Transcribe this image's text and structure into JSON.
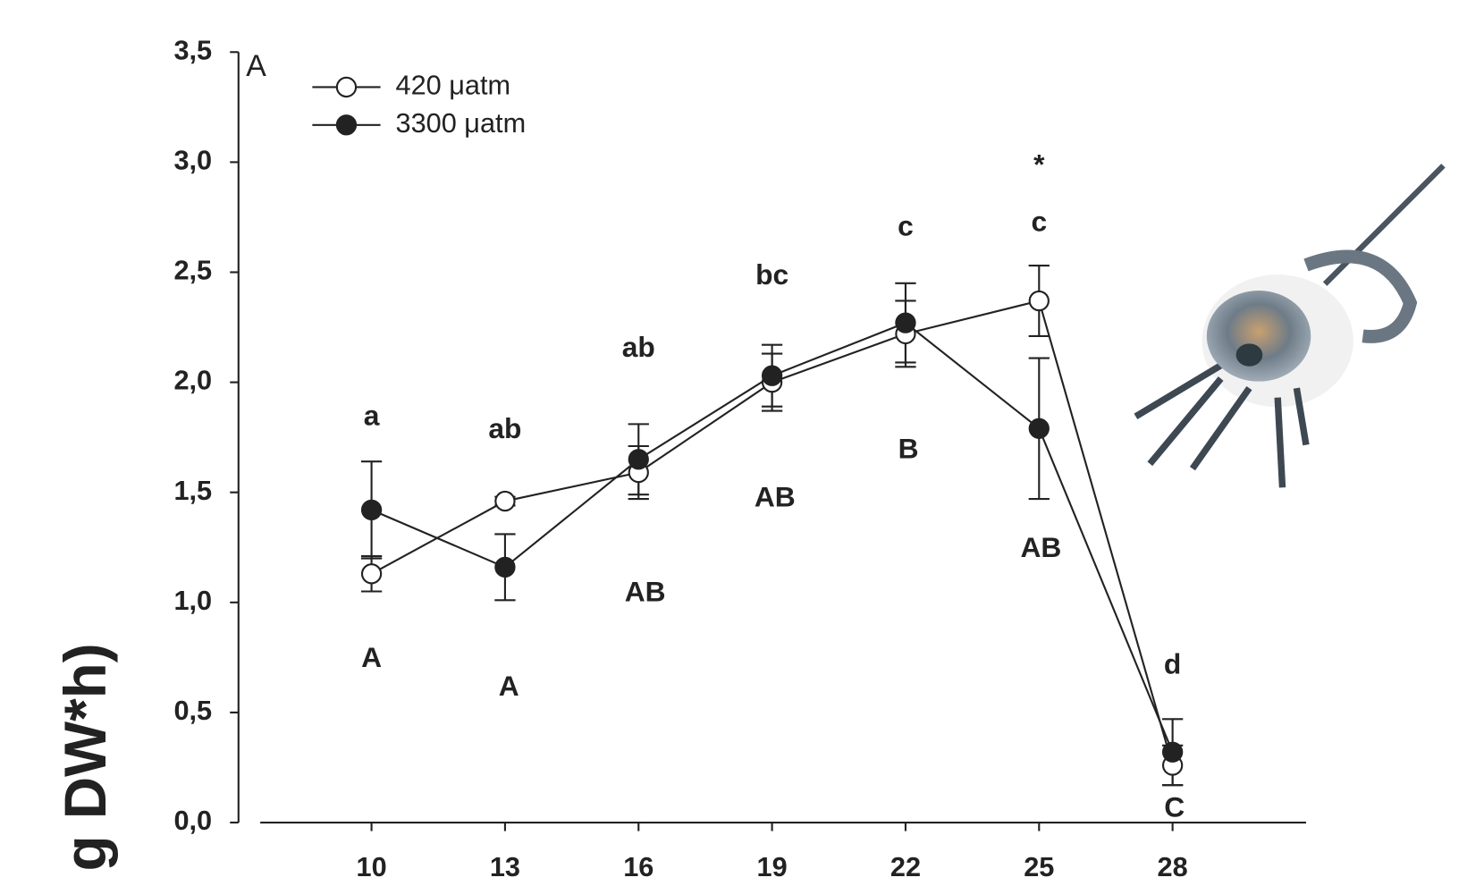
{
  "chart_data": {
    "type": "line",
    "panel_label": "A",
    "y_label": "g DW*h)",
    "x": [
      10,
      13,
      16,
      19,
      22,
      25,
      28
    ],
    "xlim": [
      7.5,
      31
    ],
    "xticks": [
      10,
      13,
      16,
      19,
      22,
      25,
      28
    ],
    "ylim": [
      0,
      3.5
    ],
    "yticks": [
      {
        "value": 0,
        "label": "0,0"
      },
      {
        "value": 0.5,
        "label": "0,5"
      },
      {
        "value": 1,
        "label": "1,0"
      },
      {
        "value": 1.5,
        "label": "1,5"
      },
      {
        "value": 2,
        "label": "2,0"
      },
      {
        "value": 2.5,
        "label": "2,5"
      },
      {
        "value": 3,
        "label": "3,0"
      },
      {
        "value": 3.5,
        "label": "3,5"
      }
    ],
    "series": [
      {
        "name": "420 μatm",
        "color": "#222222",
        "marker": "open",
        "values": [
          1.13,
          1.46,
          1.59,
          2.0,
          2.22,
          2.37,
          0.26
        ],
        "errors": [
          0.08,
          0.02,
          0.12,
          0.13,
          0.15,
          0.16,
          0.09
        ]
      },
      {
        "name": "3300 μatm",
        "color": "#222222",
        "marker": "filled",
        "values": [
          1.42,
          1.16,
          1.65,
          2.03,
          2.27,
          1.79,
          0.32
        ],
        "errors": [
          0.22,
          0.15,
          0.16,
          0.14,
          0.18,
          0.32,
          0.15
        ]
      }
    ],
    "lower_letters": [
      "a",
      "ab",
      "ab",
      "bc",
      "c",
      "c",
      "d"
    ],
    "upper_letters": [
      "A",
      "A",
      "AB",
      "AB",
      "B",
      "AB",
      "C"
    ],
    "significance": [
      null,
      null,
      null,
      null,
      null,
      "*",
      null
    ]
  }
}
